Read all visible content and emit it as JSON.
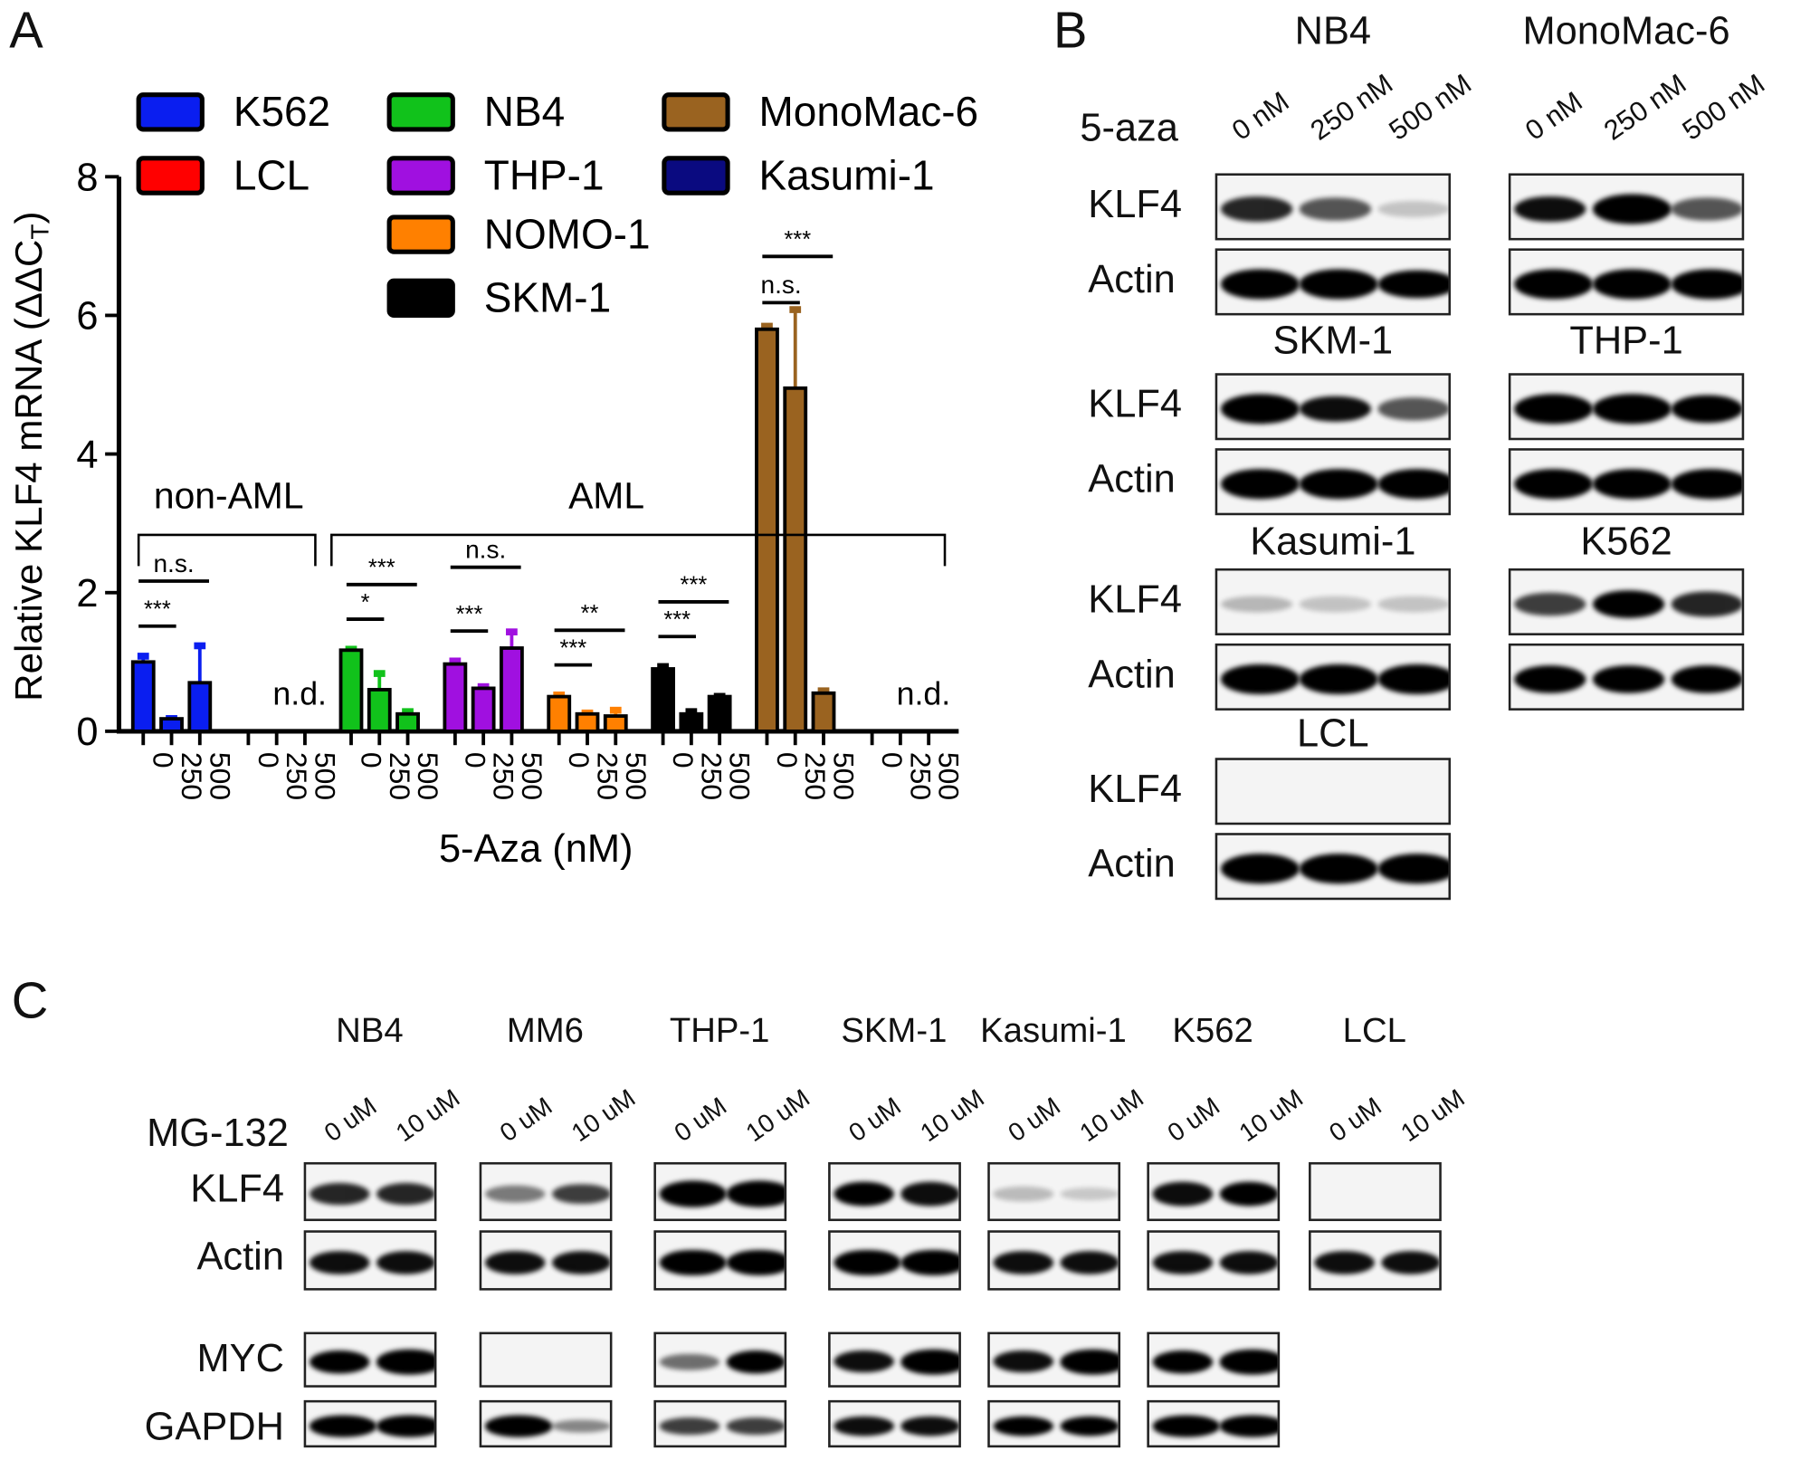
{
  "panels": {
    "a": "A",
    "b": "B",
    "c": "C"
  },
  "chart_data": {
    "type": "bar",
    "ylabel": "Relative KLF4 mRNA (ΔΔC",
    "ylabel_sub": "T",
    "ylabel_end": ")",
    "xlabel": "5-Aza (nM)",
    "ylim": [
      0,
      8
    ],
    "yticks": [
      "0",
      "2",
      "4",
      "6",
      "8"
    ],
    "doses": [
      "0",
      "250",
      "500"
    ],
    "group_labels": {
      "non_aml": "non-AML",
      "aml": "AML"
    },
    "nd_label": "n.d.",
    "series": [
      {
        "name": "K562",
        "color": "#0a1ef0",
        "values": [
          1.0,
          0.18,
          0.7
        ],
        "errors": [
          0.1,
          0.02,
          0.55
        ]
      },
      {
        "name": "LCL",
        "color": "#ff0000",
        "values": null
      },
      {
        "name": "NB4",
        "color": "#11c21b",
        "values": [
          1.17,
          0.6,
          0.25
        ],
        "errors": [
          0.03,
          0.25,
          0.05
        ]
      },
      {
        "name": "THP-1",
        "color": "#a010e0",
        "values": [
          0.97,
          0.62,
          1.2
        ],
        "errors": [
          0.06,
          0.04,
          0.25
        ]
      },
      {
        "name": "NOMO-1",
        "color": "#ff8000",
        "values": [
          0.5,
          0.25,
          0.22
        ],
        "errors": [
          0.04,
          0.03,
          0.1
        ]
      },
      {
        "name": "SKM-1",
        "color": "#000000",
        "values": [
          0.9,
          0.25,
          0.5
        ],
        "errors": [
          0.05,
          0.05,
          0.02
        ]
      },
      {
        "name": "MonoMac-6",
        "color": "#9a6320",
        "values": [
          5.8,
          4.95,
          0.55
        ],
        "errors": [
          0.06,
          1.15,
          0.05
        ]
      },
      {
        "name": "Kasumi-1",
        "color": "#0a0a80",
        "values": null
      }
    ],
    "significance": [
      {
        "series": "K562",
        "pair": [
          0,
          1
        ],
        "label": "***"
      },
      {
        "series": "K562",
        "pair": [
          0,
          2
        ],
        "label": "n.s."
      },
      {
        "series": "NB4",
        "pair": [
          0,
          1
        ],
        "label": "*"
      },
      {
        "series": "NB4",
        "pair": [
          0,
          2
        ],
        "label": "***"
      },
      {
        "series": "THP-1",
        "pair": [
          0,
          1
        ],
        "label": "***"
      },
      {
        "series": "THP-1",
        "pair": [
          0,
          2
        ],
        "label": "n.s."
      },
      {
        "series": "NOMO-1",
        "pair": [
          0,
          1
        ],
        "label": "***"
      },
      {
        "series": "NOMO-1",
        "pair": [
          0,
          2
        ],
        "label": "**"
      },
      {
        "series": "SKM-1",
        "pair": [
          0,
          1
        ],
        "label": "***"
      },
      {
        "series": "SKM-1",
        "pair": [
          0,
          2
        ],
        "label": "***"
      },
      {
        "series": "MonoMac-6",
        "pair": [
          0,
          1
        ],
        "label": "n.s."
      },
      {
        "series": "MonoMac-6",
        "pair": [
          0,
          2
        ],
        "label": "***"
      }
    ],
    "legend": "top"
  },
  "panel_b": {
    "treatment": "5-aza",
    "lanes": [
      "0 nM",
      "250 nM",
      "500 nM"
    ],
    "blots": [
      {
        "cell": "NB4",
        "rows": [
          {
            "label": "KLF4",
            "bands": [
              0.7,
              0.5,
              0.05
            ]
          },
          {
            "label": "Actin",
            "bands": [
              1,
              1,
              0.95
            ]
          }
        ]
      },
      {
        "cell": "MonoMac-6",
        "rows": [
          {
            "label": "KLF4",
            "bands": [
              0.8,
              1,
              0.5
            ]
          },
          {
            "label": "Actin",
            "bands": [
              1,
              1,
              1
            ]
          }
        ]
      },
      {
        "cell": "SKM-1",
        "rows": [
          {
            "label": "KLF4",
            "bands": [
              1,
              0.8,
              0.5
            ]
          },
          {
            "label": "Actin",
            "bands": [
              1,
              1,
              1
            ]
          }
        ]
      },
      {
        "cell": "THP-1",
        "rows": [
          {
            "label": "KLF4",
            "bands": [
              1,
              1,
              0.9
            ]
          },
          {
            "label": "Actin",
            "bands": [
              1,
              1,
              1
            ]
          }
        ]
      },
      {
        "cell": "Kasumi-1",
        "rows": [
          {
            "label": "KLF4",
            "bands": [
              0.1,
              0.05,
              0.05
            ]
          },
          {
            "label": "Actin",
            "bands": [
              1,
              1,
              1
            ]
          }
        ]
      },
      {
        "cell": "K562",
        "rows": [
          {
            "label": "KLF4",
            "bands": [
              0.6,
              0.9,
              0.7
            ]
          },
          {
            "label": "Actin",
            "bands": [
              0.9,
              0.85,
              0.9
            ]
          }
        ]
      },
      {
        "cell": "LCL",
        "rows": [
          {
            "label": "KLF4",
            "bands": [
              0,
              0,
              0
            ]
          },
          {
            "label": "Actin",
            "bands": [
              1,
              1,
              1
            ]
          }
        ]
      }
    ]
  },
  "panel_c": {
    "treatment": "MG-132",
    "lanes": [
      "0 uM",
      "10 uM"
    ],
    "row_labels": [
      "KLF4",
      "Actin",
      "MYC",
      "GAPDH"
    ],
    "cells": [
      {
        "name": "NB4",
        "rows": [
          [
            0.7,
            0.7
          ],
          [
            0.8,
            0.8
          ],
          [
            0.9,
            1
          ],
          [
            1,
            1
          ]
        ]
      },
      {
        "name": "MM6",
        "rows": [
          [
            0.35,
            0.6
          ],
          [
            0.8,
            0.8
          ],
          [
            0,
            0
          ],
          [
            1,
            0.3
          ]
        ]
      },
      {
        "name": "THP-1",
        "rows": [
          [
            1,
            1
          ],
          [
            1,
            1
          ],
          [
            0.4,
            0.9
          ],
          [
            0.6,
            0.6
          ]
        ]
      },
      {
        "name": "SKM-1",
        "rows": [
          [
            0.9,
            0.8
          ],
          [
            1,
            1
          ],
          [
            0.8,
            1
          ],
          [
            0.8,
            0.8
          ]
        ]
      },
      {
        "name": "Kasumi-1",
        "rows": [
          [
            0.08,
            0.03
          ],
          [
            0.8,
            0.8
          ],
          [
            0.8,
            1
          ],
          [
            0.9,
            0.9
          ]
        ]
      },
      {
        "name": "K562",
        "rows": [
          [
            0.8,
            0.9
          ],
          [
            0.8,
            0.8
          ],
          [
            0.9,
            1
          ],
          [
            1,
            1
          ]
        ]
      },
      {
        "name": "LCL",
        "rows": [
          [
            0,
            0
          ],
          [
            0.8,
            0.8
          ],
          null,
          null
        ]
      }
    ]
  }
}
